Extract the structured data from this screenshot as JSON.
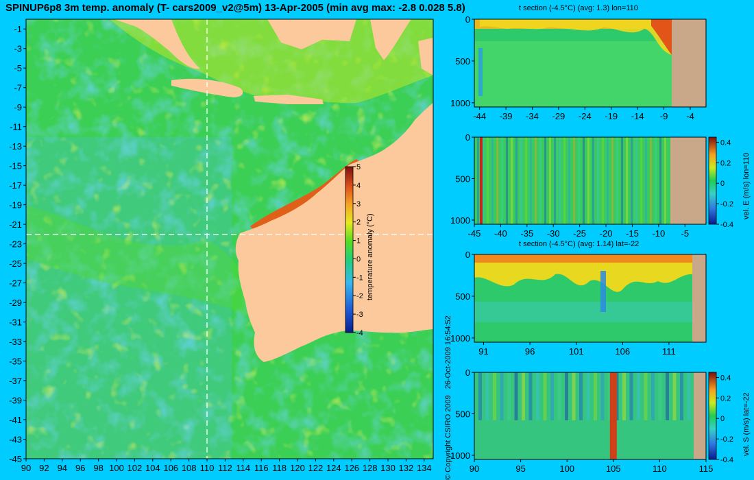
{
  "title": "SPINUP6p8 3m temp. anomaly (T- cars2009_v2@5m) 13-Apr-2005 (min avg max: -2.8 0.028 5.8)",
  "colors": {
    "background": "#00ccff",
    "land": "#fbc99b",
    "land_section": "#c8a888",
    "crosshair": "#ffffff"
  },
  "copyright": {
    "text": "© Copyright CSIRO 2009",
    "date": "26-Oct-2009 16:54:52"
  },
  "chart_data": [
    {
      "type": "heatmap",
      "id": "map",
      "title": "",
      "xlabel": "",
      "ylabel": "",
      "xlim": [
        90,
        135
      ],
      "ylim": [
        -45,
        0
      ],
      "xticks": [
        90,
        92,
        94,
        96,
        98,
        100,
        102,
        104,
        106,
        108,
        110,
        112,
        114,
        116,
        118,
        120,
        122,
        124,
        126,
        128,
        130,
        132,
        134
      ],
      "yticks": [
        -1,
        -3,
        -5,
        -7,
        -9,
        -11,
        -13,
        -15,
        -17,
        -19,
        -21,
        -23,
        -25,
        -27,
        -29,
        -31,
        -33,
        -35,
        -37,
        -39,
        -41,
        -43,
        -45
      ],
      "crosshair": {
        "lon": 110,
        "lat": -22
      },
      "colorbar": {
        "label": "temperature anomaly (°C)",
        "ticks": [
          5,
          4,
          3,
          2,
          1,
          0,
          -1,
          -2,
          -3,
          -4
        ],
        "range": [
          -4,
          5
        ]
      }
    },
    {
      "type": "heatmap",
      "id": "tsec-lon",
      "title": "t section (-4.5°C) (avg: 1.3) lon=110",
      "xlim": [
        -45,
        -1
      ],
      "ylim": [
        1050,
        0
      ],
      "xticks": [
        -44,
        -39,
        -34,
        -29,
        -24,
        -19,
        -14,
        -9,
        -4
      ],
      "yticks": [
        0,
        500,
        1000
      ]
    },
    {
      "type": "heatmap",
      "id": "vsec-lon",
      "title": "",
      "xlim": [
        -45,
        -1
      ],
      "ylim": [
        1050,
        0
      ],
      "xticks": [
        -45,
        -40,
        -35,
        -30,
        -25,
        -20,
        -15,
        -10,
        -5
      ],
      "yticks": [
        0,
        500,
        1000
      ],
      "colorbar": {
        "label": "vel. E (m/s) lon=110",
        "ticks": [
          0.4,
          0.2,
          0,
          -0.2,
          -0.4
        ],
        "range": [
          -0.4,
          0.45
        ]
      }
    },
    {
      "type": "heatmap",
      "id": "tsec-lat",
      "title": "t section (-4.5°C) (avg: 1.14) lat=-22",
      "xlim": [
        90,
        115
      ],
      "ylim": [
        1050,
        0
      ],
      "xticks": [
        91,
        96,
        101,
        106,
        111
      ],
      "yticks": [
        0,
        500,
        1000
      ]
    },
    {
      "type": "heatmap",
      "id": "vsec-lat",
      "title": "",
      "xlim": [
        90,
        115
      ],
      "ylim": [
        1050,
        0
      ],
      "xticks": [
        90,
        95,
        100,
        105,
        110,
        115
      ],
      "yticks": [
        0,
        500,
        1000
      ],
      "colorbar": {
        "label": "vel. S (m/s) lat=-22",
        "ticks": [
          0.4,
          0.2,
          0,
          -0.2,
          -0.4
        ],
        "range": [
          -0.4,
          0.45
        ]
      }
    }
  ]
}
